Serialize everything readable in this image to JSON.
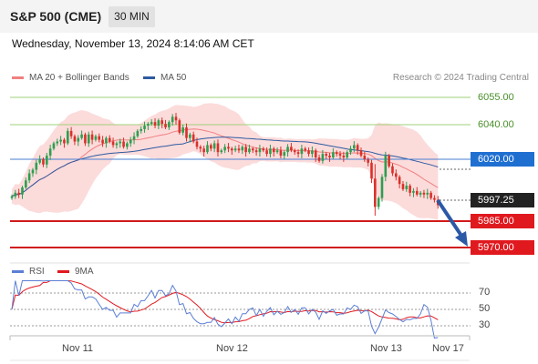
{
  "header": {
    "title": "S&P 500 (CME)",
    "interval": "30 MIN"
  },
  "datetime": "Wednesday, November 13, 2024 8:14:06 AM CET",
  "legend": {
    "items": [
      {
        "label": "MA 20 + Bollinger Bands",
        "color": "#f08080"
      },
      {
        "label": "MA 50",
        "color": "#2d5aa0"
      }
    ],
    "credit": "Research © 2024 Trading Central"
  },
  "levels": {
    "r3": "6055.00",
    "r2": "6040.00",
    "r1": "6020.00",
    "last": "5997.25",
    "s1": "5985.00",
    "s2": "5970.00"
  },
  "rsi": {
    "legend": [
      {
        "label": "RSI",
        "color": "#5b7fd4"
      },
      {
        "label": "9MA",
        "color": "#e0191f"
      }
    ],
    "ticks": [
      "70",
      "50",
      "30"
    ]
  },
  "xaxis": {
    "labels": [
      "Nov 11",
      "Nov 12",
      "Nov 13",
      "Nov 17"
    ]
  },
  "colors": {
    "up": "#2e9e4f",
    "down": "#d8312a",
    "band": "#fbd5d5",
    "ma50": "#2d5aa0",
    "ma20": "#f08080"
  },
  "chart_data": {
    "type": "candlestick",
    "y_range": [
      5966,
      6061
    ],
    "levels": [
      6055,
      6040,
      6020,
      5985,
      5970
    ],
    "last_price": 5997.25,
    "closes": [
      5999,
      6001,
      6000,
      6004,
      6008,
      6012,
      6014,
      6018,
      6020,
      6017,
      6022,
      6026,
      6029,
      6030,
      6031,
      6029,
      6036,
      6033,
      6030,
      6032,
      6034,
      6029,
      6034,
      6031,
      6033,
      6031,
      6029,
      6032,
      6030,
      6028,
      6029,
      6030,
      6027,
      6029,
      6031,
      6033,
      6036,
      6037,
      6039,
      6040,
      6041,
      6039,
      6042,
      6040,
      6038,
      6041,
      6044,
      6042,
      6035,
      6038,
      6032,
      6034,
      6030,
      6027,
      6026,
      6024,
      6028,
      6026,
      6029,
      6024,
      6025,
      6027,
      6026,
      6025,
      6026,
      6025,
      6027,
      6024,
      6026,
      6025,
      6024,
      6026,
      6025,
      6023,
      6026,
      6024,
      6025,
      6022,
      6024,
      6027,
      6025,
      6024,
      6023,
      6026,
      6025,
      6023,
      6025,
      6021,
      6019,
      6023,
      6022,
      6021,
      6024,
      6023,
      6022,
      6021,
      6024,
      6026,
      6028,
      6025,
      6022,
      6020,
      6018,
      6009,
      5993,
      5998,
      6010,
      6022,
      6016,
      6012,
      6010,
      6006,
      6003,
      6005,
      6001,
      6002,
      6000,
      6001,
      6000,
      6001,
      5998,
      5997,
      5994
    ]
  }
}
